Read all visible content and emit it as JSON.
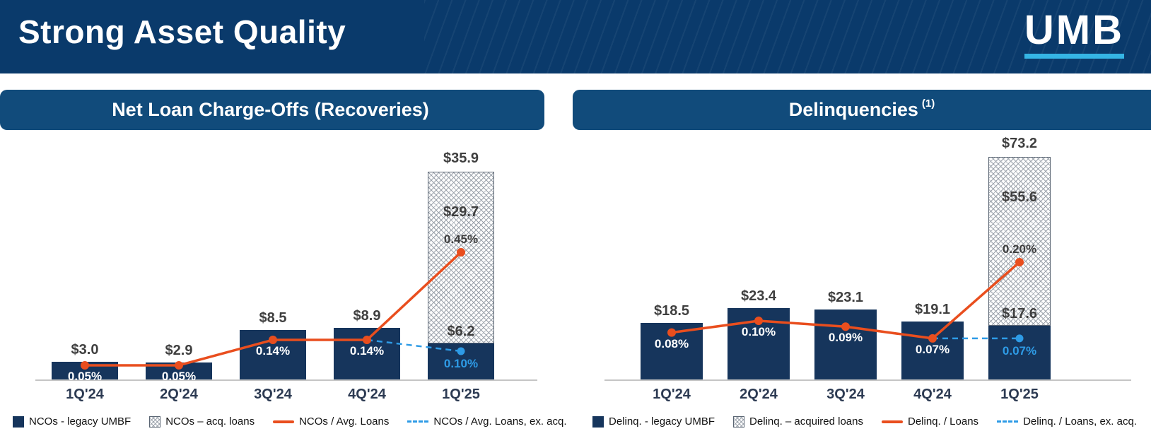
{
  "header": {
    "title": "Strong Asset Quality",
    "logo_text": "UMB"
  },
  "colors": {
    "header_navy": "#0A3A6B",
    "panel_navy": "#114B7B",
    "bar_navy": "#16355C",
    "orange": "#E94E1E",
    "light_blue": "#2E9BE6",
    "logo_underline_cyan": "#35B5E5",
    "label_gray": "#3F3F3F"
  },
  "chart_data": [
    {
      "type": "bar+line",
      "title": "Net Loan Charge-Offs (Recoveries)",
      "title_note": "",
      "categories": [
        "1Q'24",
        "2Q'24",
        "3Q'24",
        "4Q'24",
        "1Q'25"
      ],
      "grid": false,
      "legend_position": "bottom",
      "bar_axis_range": [
        0,
        40
      ],
      "pct_axis_range": [
        0,
        0.5
      ],
      "series": [
        {
          "role": "legacy",
          "name": "NCOs - legacy UMBF",
          "type": "bar",
          "values": [
            3.0,
            2.9,
            8.5,
            8.9,
            6.2
          ],
          "labels": [
            "$3.0",
            "$2.9",
            "$8.5",
            "$8.9",
            "$6.2"
          ]
        },
        {
          "role": "acquired",
          "name": "NCOs – acq. loans",
          "type": "bar-hatched",
          "values": [
            null,
            null,
            null,
            null,
            29.7
          ],
          "labels": [
            null,
            null,
            null,
            null,
            "$29.7"
          ]
        },
        {
          "role": "ratio",
          "name": "NCOs / Avg. Loans",
          "type": "line",
          "values": [
            0.05,
            0.05,
            0.14,
            0.14,
            0.45
          ],
          "labels": [
            "0.05%",
            "0.05%",
            "0.14%",
            "0.14%",
            "0.45%"
          ],
          "label_pos": [
            "below",
            "below",
            "below",
            "below",
            "above"
          ]
        },
        {
          "role": "ratio_ex",
          "name": "NCOs / Avg. Loans, ex. acq.",
          "type": "dashed-line",
          "values": [
            null,
            null,
            null,
            0.14,
            0.1
          ],
          "labels": [
            null,
            null,
            null,
            null,
            "0.10%"
          ]
        }
      ],
      "stack_total_labels": [
        null,
        null,
        null,
        null,
        "$35.9"
      ],
      "legend": [
        {
          "swatch": "navy",
          "label": "NCOs - legacy UMBF"
        },
        {
          "swatch": "hatch",
          "label": "NCOs – acq. loans"
        },
        {
          "swatch": "orange",
          "label": "NCOs / Avg. Loans"
        },
        {
          "swatch": "dash",
          "label": "NCOs / Avg. Loans, ex. acq."
        }
      ]
    },
    {
      "type": "bar+line",
      "title": "Delinquencies",
      "title_note": "(1)",
      "categories": [
        "1Q'24",
        "2Q'24",
        "3Q'24",
        "4Q'24",
        "1Q'25"
      ],
      "grid": false,
      "legend_position": "bottom",
      "bar_axis_range": [
        0,
        80
      ],
      "pct_axis_range": [
        0,
        0.25
      ],
      "series": [
        {
          "role": "legacy",
          "name": "Delinq. - legacy UMBF",
          "type": "bar",
          "values": [
            18.5,
            23.4,
            23.1,
            19.1,
            17.6
          ],
          "labels": [
            "$18.5",
            "$23.4",
            "$23.1",
            "$19.1",
            "$17.6"
          ]
        },
        {
          "role": "acquired",
          "name": "Delinq. – acquired loans",
          "type": "bar-hatched",
          "values": [
            null,
            null,
            null,
            null,
            55.6
          ],
          "labels": [
            null,
            null,
            null,
            null,
            "$55.6"
          ]
        },
        {
          "role": "ratio",
          "name": "Delinq. / Loans",
          "type": "line",
          "values": [
            0.08,
            0.1,
            0.09,
            0.07,
            0.2
          ],
          "labels": [
            "0.08%",
            "0.10%",
            "0.09%",
            "0.07%",
            "0.20%"
          ],
          "label_pos": [
            "below",
            "below",
            "below",
            "below",
            "above"
          ]
        },
        {
          "role": "ratio_ex",
          "name": "Delinq. / Loans, ex. acq.",
          "type": "dashed-line",
          "values": [
            null,
            null,
            null,
            0.07,
            0.07
          ],
          "labels": [
            null,
            null,
            null,
            null,
            "0.07%"
          ]
        }
      ],
      "stack_total_labels": [
        null,
        null,
        null,
        null,
        "$73.2"
      ],
      "legend": [
        {
          "swatch": "navy",
          "label": "Delinq. - legacy UMBF"
        },
        {
          "swatch": "hatch",
          "label": "Delinq. – acquired loans"
        },
        {
          "swatch": "orange",
          "label": "Delinq. / Loans"
        },
        {
          "swatch": "dash",
          "label": "Delinq. / Loans, ex. acq."
        }
      ]
    }
  ]
}
